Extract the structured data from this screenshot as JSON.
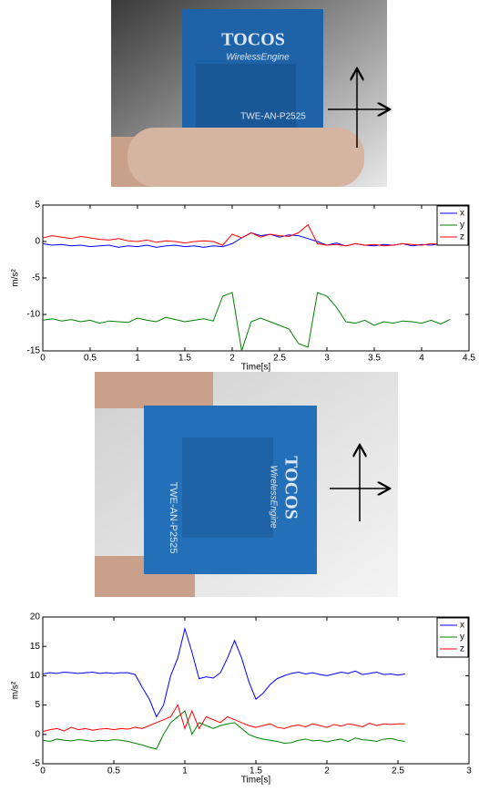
{
  "photos": [
    {
      "brand": "TOCOS",
      "subtitle": "WirelessEngine",
      "model": "TWE-AN-P2525"
    },
    {
      "brand": "TOCOS",
      "subtitle": "WirelessEngine",
      "model": "TWE-AN-P2525"
    }
  ],
  "chart_data": [
    {
      "type": "line",
      "xlabel": "Time[s]",
      "ylabel": "m/s²",
      "x": [
        0,
        0.1,
        0.2,
        0.3,
        0.4,
        0.5,
        0.6,
        0.7,
        0.8,
        0.9,
        1,
        1.1,
        1.2,
        1.3,
        1.4,
        1.5,
        1.6,
        1.7,
        1.8,
        1.9,
        2,
        2.1,
        2.2,
        2.3,
        2.4,
        2.5,
        2.6,
        2.7,
        2.8,
        2.9,
        3,
        3.1,
        3.2,
        3.3,
        3.4,
        3.5,
        3.6,
        3.7,
        3.8,
        3.9,
        4,
        4.1,
        4.2,
        4.3
      ],
      "series": [
        {
          "name": "x",
          "color": "#0000ff",
          "values": [
            -0.3,
            -0.5,
            -0.4,
            -0.6,
            -0.5,
            -0.7,
            -0.6,
            -0.5,
            -0.8,
            -0.6,
            -0.7,
            -0.5,
            -0.8,
            -0.6,
            -0.5,
            -0.7,
            -0.6,
            -0.8,
            -0.6,
            -0.7,
            -0.3,
            0.5,
            1.2,
            0.8,
            1,
            0.6,
            0.9,
            0.8,
            0.4,
            0,
            -0.5,
            -0.2,
            -0.6,
            -0.3,
            -0.5,
            -0.6,
            -0.4,
            -0.5,
            -0.3,
            -0.6,
            -0.4,
            -0.5,
            -0.3,
            -0.4
          ]
        },
        {
          "name": "y",
          "color": "#008000",
          "values": [
            -10.8,
            -10.6,
            -10.9,
            -10.7,
            -11,
            -10.8,
            -11.2,
            -10.9,
            -11,
            -11.1,
            -10.5,
            -10.8,
            -11,
            -10.4,
            -10.7,
            -11,
            -10.8,
            -10.6,
            -10.9,
            -7.5,
            -7,
            -15,
            -11,
            -10.5,
            -11,
            -11.5,
            -12,
            -14,
            -14.5,
            -7,
            -7.5,
            -9,
            -11,
            -11.2,
            -10.8,
            -11.5,
            -11,
            -11.2,
            -10.9,
            -11,
            -11.2,
            -10.8,
            -11.3,
            -10.7
          ]
        },
        {
          "name": "z",
          "color": "#ff0000",
          "values": [
            0.5,
            0.8,
            0.6,
            0.4,
            0.7,
            0.5,
            0.3,
            0.2,
            0.4,
            0.1,
            0,
            0.2,
            -0.1,
            0.1,
            0,
            -0.2,
            0,
            0.1,
            0,
            -0.5,
            1,
            0.5,
            1.2,
            0.6,
            1,
            0.8,
            0.7,
            1.2,
            2.3,
            -0.3,
            -0.5,
            -0.4,
            -0.6,
            -0.3,
            -0.5,
            -0.4,
            -0.6,
            -0.5,
            -0.3,
            -0.4,
            -0.5,
            -0.3,
            -0.4,
            -0.5
          ]
        }
      ],
      "xlim": [
        0,
        4.5
      ],
      "xticks": [
        0,
        0.5,
        1,
        1.5,
        2,
        2.5,
        3,
        3.5,
        4,
        4.5
      ],
      "ylim": [
        -15,
        5
      ],
      "yticks": [
        -15,
        -10,
        -5,
        0,
        5
      ],
      "legend": "top-right"
    },
    {
      "type": "line",
      "xlabel": "Time[s]",
      "ylabel": "m/s²",
      "x": [
        0,
        0.05,
        0.1,
        0.15,
        0.2,
        0.25,
        0.3,
        0.35,
        0.4,
        0.45,
        0.5,
        0.55,
        0.6,
        0.65,
        0.7,
        0.75,
        0.8,
        0.85,
        0.9,
        0.95,
        1,
        1.05,
        1.1,
        1.15,
        1.2,
        1.25,
        1.3,
        1.35,
        1.4,
        1.45,
        1.5,
        1.55,
        1.6,
        1.65,
        1.7,
        1.75,
        1.8,
        1.85,
        1.9,
        1.95,
        2,
        2.05,
        2.1,
        2.15,
        2.2,
        2.25,
        2.3,
        2.35,
        2.4,
        2.45,
        2.5,
        2.55
      ],
      "series": [
        {
          "name": "x",
          "color": "#0000ff",
          "values": [
            10.3,
            10.5,
            10.4,
            10.6,
            10.5,
            10.4,
            10.5,
            10.6,
            10.4,
            10.5,
            10.4,
            10.5,
            10.5,
            10.2,
            8,
            6,
            3,
            5,
            10,
            13,
            18,
            14,
            9.5,
            9.8,
            9.6,
            10.5,
            13,
            16,
            13,
            9,
            6,
            7,
            8.5,
            9.5,
            10,
            10.4,
            10.6,
            10.3,
            10.5,
            10.2,
            10,
            10.3,
            10.6,
            10.4,
            10.8,
            10.2,
            10.4,
            10.6,
            10.2,
            10.3,
            10.1,
            10.3
          ]
        },
        {
          "name": "y",
          "color": "#008000",
          "values": [
            -1,
            -1.2,
            -0.8,
            -1,
            -1.1,
            -0.9,
            -1,
            -1.2,
            -1,
            -1.1,
            -0.9,
            -1,
            -1.2,
            -1.5,
            -1.8,
            -2.2,
            -2.5,
            0,
            2,
            3,
            4,
            0,
            2,
            1.5,
            1,
            1.5,
            1.8,
            2,
            1,
            0,
            -0.5,
            -0.8,
            -1,
            -1.2,
            -1.5,
            -1.4,
            -1,
            -0.8,
            -1.1,
            -1,
            -1.3,
            -1,
            -0.8,
            -1.2,
            -0.6,
            -0.9,
            -1,
            -1.2,
            -0.8,
            -0.7,
            -1,
            -1.2
          ]
        },
        {
          "name": "z",
          "color": "#ff0000",
          "values": [
            0.5,
            0.8,
            1,
            0.6,
            1.2,
            0.8,
            1,
            0.7,
            0.9,
            1,
            0.8,
            1,
            0.9,
            1.2,
            1,
            1.5,
            2,
            2.5,
            3,
            5,
            1,
            4,
            1,
            3,
            2.5,
            2,
            3,
            2.5,
            2,
            1.5,
            1.2,
            1.5,
            1.8,
            1.2,
            1,
            1.4,
            1.6,
            1.3,
            1.8,
            1.5,
            1.2,
            1.7,
            1.4,
            1.8,
            1.6,
            1.3,
            1.9,
            1.5,
            1.8,
            1.7,
            1.8,
            1.8
          ]
        }
      ],
      "xlim": [
        0,
        3
      ],
      "xticks": [
        0,
        0.5,
        1,
        1.5,
        2,
        2.5,
        3
      ],
      "ylim": [
        -5,
        20
      ],
      "yticks": [
        -5,
        0,
        5,
        10,
        15,
        20
      ],
      "legend": "top-right"
    }
  ]
}
